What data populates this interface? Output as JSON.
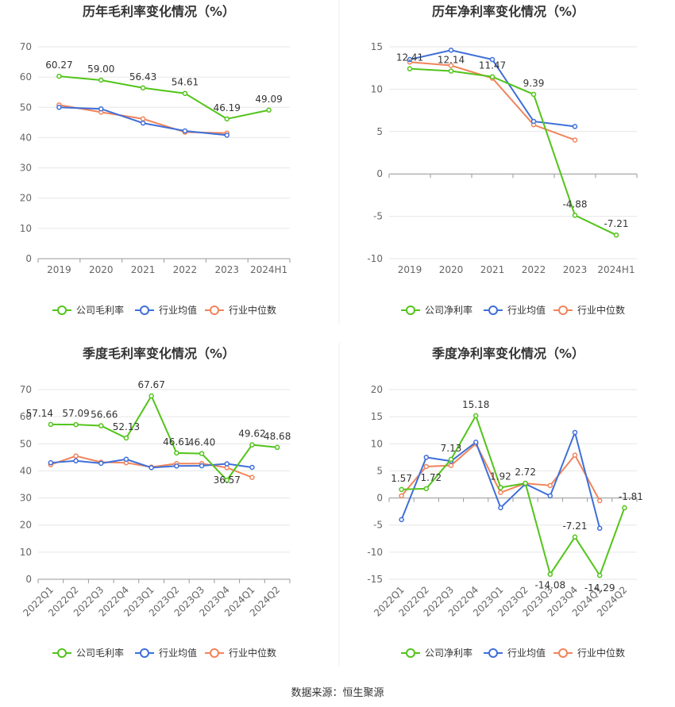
{
  "colors": {
    "company": "#52c41a",
    "industry_avg": "#3f6fd8",
    "industry_median": "#f0845c",
    "grid": "#e6e6e6",
    "axis": "#999999",
    "text": "#333333",
    "tick": "#666666",
    "divider": "#eeeeee"
  },
  "legend": {
    "company_gross": "公司毛利率",
    "company_net": "公司净利率",
    "industry_avg": "行业均值",
    "industry_median": "行业中位数"
  },
  "footer": {
    "source": "数据来源：恒生聚源"
  },
  "chart_data": [
    {
      "id": "annual-gross",
      "type": "line",
      "title": "历年毛利率变化情况（%）",
      "categories": [
        "2019",
        "2020",
        "2021",
        "2022",
        "2023",
        "2024H1"
      ],
      "ylim": [
        0,
        70
      ],
      "yticks": [
        0,
        10,
        20,
        30,
        40,
        50,
        60,
        70
      ],
      "grid": true,
      "legend_position": "bottom",
      "series": [
        {
          "name": "公司毛利率",
          "color_key": "company",
          "labels": true,
          "values": [
            60.27,
            59.0,
            56.43,
            54.61,
            46.19,
            49.09
          ]
        },
        {
          "name": "行业均值",
          "color_key": "industry_avg",
          "labels": false,
          "values": [
            50.0,
            49.5,
            44.8,
            42.2,
            40.8,
            null
          ]
        },
        {
          "name": "行业中位数",
          "color_key": "industry_median",
          "labels": false,
          "values": [
            50.8,
            48.4,
            46.2,
            41.8,
            41.5,
            null
          ]
        }
      ]
    },
    {
      "id": "annual-net",
      "type": "line",
      "title": "历年净利率变化情况（%）",
      "categories": [
        "2019",
        "2020",
        "2021",
        "2022",
        "2023",
        "2024H1"
      ],
      "ylim": [
        -10,
        15
      ],
      "yticks": [
        -10,
        -5,
        0,
        5,
        10,
        15
      ],
      "grid": true,
      "legend_position": "bottom",
      "series": [
        {
          "name": "公司净利率",
          "color_key": "company",
          "labels": true,
          "values": [
            12.41,
            12.14,
            11.47,
            9.39,
            -4.88,
            -7.21
          ]
        },
        {
          "name": "行业均值",
          "color_key": "industry_avg",
          "labels": false,
          "values": [
            13.5,
            14.6,
            13.5,
            6.2,
            5.6,
            null
          ]
        },
        {
          "name": "行业中位数",
          "color_key": "industry_median",
          "labels": false,
          "values": [
            13.2,
            12.8,
            11.3,
            5.8,
            4.0,
            null
          ]
        }
      ]
    },
    {
      "id": "quarterly-gross",
      "type": "line",
      "title": "季度毛利率变化情况（%）",
      "categories": [
        "2022Q1",
        "2022Q2",
        "2022Q3",
        "2022Q4",
        "2023Q1",
        "2023Q2",
        "2023Q3",
        "2023Q4",
        "2024Q1",
        "2024Q2"
      ],
      "ylim": [
        0,
        70
      ],
      "yticks": [
        0,
        10,
        20,
        30,
        40,
        50,
        60,
        70
      ],
      "grid": true,
      "legend_position": "bottom",
      "series": [
        {
          "name": "公司毛利率",
          "color_key": "company",
          "labels": true,
          "values": [
            57.14,
            57.09,
            56.66,
            52.13,
            67.67,
            46.61,
            46.4,
            36.57,
            49.62,
            48.68
          ]
        },
        {
          "name": "行业均值",
          "color_key": "industry_avg",
          "labels": false,
          "values": [
            43.0,
            43.7,
            42.8,
            44.3,
            41.2,
            41.8,
            41.9,
            42.6,
            41.3,
            null
          ]
        },
        {
          "name": "行业中位数",
          "color_key": "industry_median",
          "labels": false,
          "values": [
            42.3,
            45.5,
            43.2,
            43.0,
            41.4,
            42.7,
            42.7,
            41.2,
            37.6,
            null
          ]
        }
      ]
    },
    {
      "id": "quarterly-net",
      "type": "line",
      "title": "季度净利率变化情况（%）",
      "categories": [
        "2022Q1",
        "2022Q2",
        "2022Q3",
        "2022Q4",
        "2023Q1",
        "2023Q2",
        "2023Q3",
        "2023Q4",
        "2024Q1",
        "2024Q2"
      ],
      "ylim": [
        -15,
        20
      ],
      "yticks": [
        -15,
        -10,
        -5,
        0,
        5,
        10,
        15,
        20
      ],
      "grid": true,
      "legend_position": "bottom",
      "series": [
        {
          "name": "公司净利率",
          "color_key": "company",
          "labels": true,
          "values": [
            1.57,
            1.72,
            7.13,
            15.18,
            1.92,
            2.72,
            -14.08,
            -7.21,
            -14.29,
            -1.81
          ]
        },
        {
          "name": "行业均值",
          "color_key": "industry_avg",
          "labels": false,
          "values": [
            -4.0,
            7.5,
            6.8,
            10.3,
            -1.8,
            2.6,
            0.4,
            12.1,
            -5.6,
            null
          ]
        },
        {
          "name": "行业中位数",
          "color_key": "industry_median",
          "labels": false,
          "values": [
            0.4,
            5.8,
            6.0,
            10.0,
            1.0,
            2.7,
            2.3,
            7.9,
            -0.5,
            null
          ]
        }
      ]
    }
  ]
}
